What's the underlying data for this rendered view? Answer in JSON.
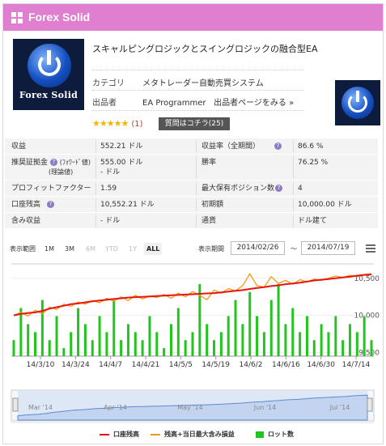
{
  "header": {
    "title": "Forex Solid"
  },
  "product": {
    "logo_text": "Forex Solid",
    "title": "スキャルピングロジックとスイングロジックの融合型EA",
    "category_label": "カテゴリ",
    "category_value": "メタトレーダー自動売買システム",
    "seller_label": "出品者",
    "seller_value": "EA Programmer",
    "seller_link": "出品者ページをみる »",
    "stars": "★★★★★",
    "review_count": "(1)",
    "question_button": "質問はコチラ(25)"
  },
  "stats": {
    "rows": [
      {
        "k1": "収益",
        "v1": "552.21 ドル",
        "k2": "収益率（全期間）",
        "v2": "86.6 %"
      },
      {
        "k1": "推奨証拠金 ? (フォワード値)",
        "k1b": "(理論値)",
        "v1": "555.00 ドル",
        "v1b": "- ドル",
        "k2": "勝率",
        "v2": "76.25 %"
      },
      {
        "k1": "プロフィットファクター",
        "v1": "1.59",
        "k2": "最大保有ポジション数",
        "v2": "4"
      },
      {
        "k1": "口座残高",
        "v1": "10,552.21 ドル",
        "k2": "初期額",
        "v2": "10,000.00 ドル"
      },
      {
        "k1": "含み収益",
        "v1": "- ドル",
        "k2": "通貨",
        "v2": "ドル建て"
      }
    ]
  },
  "range": {
    "label": "表示範囲",
    "buttons": [
      "1M",
      "3M",
      "6M",
      "YTD",
      "1Y",
      "ALL"
    ],
    "period_label": "表示期間",
    "from": "2014/02/26",
    "sep": "～",
    "to": "2014/07/19"
  },
  "chart_data": {
    "type": "line",
    "x_ticks": [
      "14/3/10",
      "14/3/24",
      "14/4/7",
      "14/4/21",
      "14/5/5",
      "14/5/19",
      "14/6/2",
      "14/6/16",
      "14/6/30",
      "14/7/14"
    ],
    "y_ticks": [
      "10,500",
      "10,000",
      "9,500"
    ],
    "ylim": [
      9450,
      10650
    ],
    "navigator_ticks": [
      "Mar '14",
      "Apr '14",
      "May '14",
      "Jun '14",
      "Jul '14"
    ],
    "series": [
      {
        "name": "口座残高",
        "color": "#e8140f",
        "values": [
          10000,
          10020,
          10030,
          10040,
          10060,
          10090,
          10110,
          10130,
          10150,
          10160,
          10175,
          10190,
          10200,
          10210,
          10220,
          10230,
          10240,
          10245,
          10250,
          10255,
          10260,
          10265,
          10270,
          10275,
          10280,
          10285,
          10290,
          10295,
          10300,
          10310,
          10320,
          10330,
          10340,
          10355,
          10370,
          10380,
          10395,
          10405,
          10420,
          10430,
          10440,
          10455,
          10470,
          10480,
          10490,
          10500,
          10510,
          10520,
          10535,
          10545,
          10552
        ]
      },
      {
        "name": "残高+当日最大含み損益",
        "color": "#f39c12",
        "values": [
          10000,
          10040,
          9990,
          10070,
          10020,
          10110,
          10080,
          10150,
          10120,
          10180,
          10150,
          10200,
          10170,
          10230,
          10190,
          10250,
          10200,
          10270,
          10220,
          10260,
          10240,
          10280,
          10230,
          10300,
          10250,
          10320,
          10270,
          10210,
          10340,
          10300,
          10360,
          10330,
          10400,
          10560,
          10400,
          10380,
          10520,
          10430,
          10470,
          10420,
          10480,
          10450,
          10490,
          10470,
          10500,
          10530,
          10510,
          10540,
          10520,
          10550,
          10560
        ]
      },
      {
        "name": "ロット数",
        "color": "#22c41e",
        "values": [
          0.2,
          0.6,
          0.4,
          0.3,
          0.7,
          0.2,
          0.5,
          0.1,
          0.3,
          0.6,
          0.4,
          0.2,
          0.5,
          0.3,
          0.7,
          0.2,
          0.4,
          0.3,
          0.2,
          0.5,
          0.3,
          0.1,
          0.4,
          0.6,
          0.2,
          0.3,
          0.9,
          0.4,
          0.2,
          0.3,
          0.5,
          0.7,
          0.4,
          0.8,
          0.5,
          0.3,
          0.7,
          0.9,
          0.4,
          0.6,
          0.3,
          0.5,
          0.2,
          0.4,
          0.3,
          0.5,
          0.2,
          0.4,
          0.3,
          0.5,
          0.2
        ]
      }
    ]
  }
}
